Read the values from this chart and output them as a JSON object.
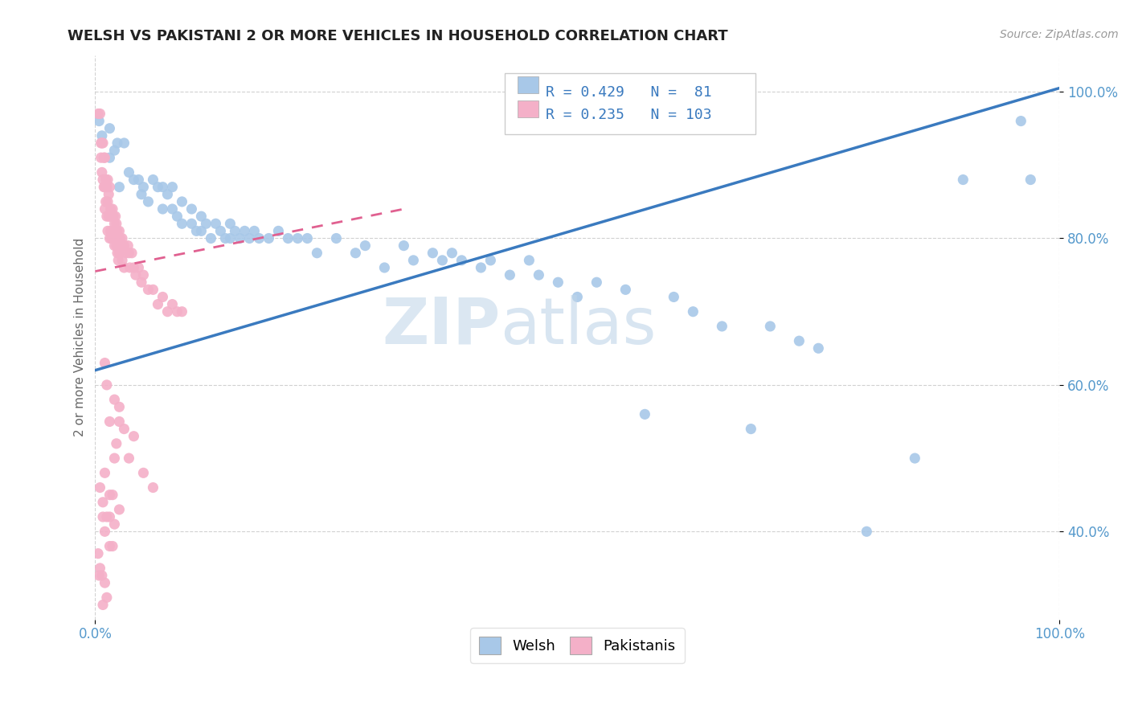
{
  "title": "WELSH VS PAKISTANI 2 OR MORE VEHICLES IN HOUSEHOLD CORRELATION CHART",
  "source": "Source: ZipAtlas.com",
  "ylabel": "2 or more Vehicles in Household",
  "welsh_R": 0.429,
  "welsh_N": 81,
  "pakistani_R": 0.235,
  "pakistani_N": 103,
  "welsh_color": "#a8c8e8",
  "pakistani_color": "#f4b0c8",
  "welsh_line_color": "#3a7abf",
  "pakistani_line_color": "#e06090",
  "welsh_trend_x0": 0.0,
  "welsh_trend_y0": 0.62,
  "welsh_trend_x1": 1.0,
  "welsh_trend_y1": 1.005,
  "pakistani_trend_x0": 0.0,
  "pakistani_trend_y0": 0.755,
  "pakistani_trend_x1": 0.32,
  "pakistani_trend_y1": 0.84,
  "xlim": [
    0.0,
    1.0
  ],
  "ylim": [
    0.28,
    1.05
  ],
  "welsh_dots": [
    [
      0.004,
      0.96
    ],
    [
      0.007,
      0.94
    ],
    [
      0.015,
      0.95
    ],
    [
      0.015,
      0.91
    ],
    [
      0.02,
      0.92
    ],
    [
      0.023,
      0.93
    ],
    [
      0.025,
      0.87
    ],
    [
      0.03,
      0.93
    ],
    [
      0.035,
      0.89
    ],
    [
      0.04,
      0.88
    ],
    [
      0.045,
      0.88
    ],
    [
      0.048,
      0.86
    ],
    [
      0.05,
      0.87
    ],
    [
      0.055,
      0.85
    ],
    [
      0.06,
      0.88
    ],
    [
      0.065,
      0.87
    ],
    [
      0.07,
      0.84
    ],
    [
      0.07,
      0.87
    ],
    [
      0.075,
      0.86
    ],
    [
      0.08,
      0.84
    ],
    [
      0.08,
      0.87
    ],
    [
      0.085,
      0.83
    ],
    [
      0.09,
      0.85
    ],
    [
      0.09,
      0.82
    ],
    [
      0.1,
      0.84
    ],
    [
      0.1,
      0.82
    ],
    [
      0.105,
      0.81
    ],
    [
      0.11,
      0.83
    ],
    [
      0.11,
      0.81
    ],
    [
      0.115,
      0.82
    ],
    [
      0.12,
      0.8
    ],
    [
      0.125,
      0.82
    ],
    [
      0.13,
      0.81
    ],
    [
      0.135,
      0.8
    ],
    [
      0.14,
      0.82
    ],
    [
      0.14,
      0.8
    ],
    [
      0.145,
      0.81
    ],
    [
      0.15,
      0.8
    ],
    [
      0.155,
      0.81
    ],
    [
      0.16,
      0.8
    ],
    [
      0.165,
      0.81
    ],
    [
      0.17,
      0.8
    ],
    [
      0.18,
      0.8
    ],
    [
      0.19,
      0.81
    ],
    [
      0.2,
      0.8
    ],
    [
      0.21,
      0.8
    ],
    [
      0.22,
      0.8
    ],
    [
      0.23,
      0.78
    ],
    [
      0.25,
      0.8
    ],
    [
      0.27,
      0.78
    ],
    [
      0.28,
      0.79
    ],
    [
      0.3,
      0.76
    ],
    [
      0.32,
      0.79
    ],
    [
      0.33,
      0.77
    ],
    [
      0.35,
      0.78
    ],
    [
      0.36,
      0.77
    ],
    [
      0.37,
      0.78
    ],
    [
      0.38,
      0.77
    ],
    [
      0.4,
      0.76
    ],
    [
      0.41,
      0.77
    ],
    [
      0.43,
      0.75
    ],
    [
      0.45,
      0.77
    ],
    [
      0.46,
      0.75
    ],
    [
      0.48,
      0.74
    ],
    [
      0.5,
      0.72
    ],
    [
      0.52,
      0.74
    ],
    [
      0.55,
      0.73
    ],
    [
      0.57,
      0.56
    ],
    [
      0.6,
      0.72
    ],
    [
      0.62,
      0.7
    ],
    [
      0.65,
      0.68
    ],
    [
      0.68,
      0.54
    ],
    [
      0.7,
      0.68
    ],
    [
      0.73,
      0.66
    ],
    [
      0.75,
      0.65
    ],
    [
      0.8,
      0.4
    ],
    [
      0.85,
      0.5
    ],
    [
      0.9,
      0.88
    ],
    [
      0.96,
      0.96
    ],
    [
      0.97,
      0.88
    ]
  ],
  "pakistani_dots": [
    [
      0.003,
      0.97
    ],
    [
      0.005,
      0.97
    ],
    [
      0.006,
      0.93
    ],
    [
      0.006,
      0.91
    ],
    [
      0.007,
      0.93
    ],
    [
      0.007,
      0.89
    ],
    [
      0.008,
      0.93
    ],
    [
      0.008,
      0.88
    ],
    [
      0.009,
      0.91
    ],
    [
      0.009,
      0.87
    ],
    [
      0.01,
      0.91
    ],
    [
      0.01,
      0.87
    ],
    [
      0.01,
      0.84
    ],
    [
      0.011,
      0.88
    ],
    [
      0.011,
      0.85
    ],
    [
      0.012,
      0.87
    ],
    [
      0.012,
      0.83
    ],
    [
      0.013,
      0.88
    ],
    [
      0.013,
      0.85
    ],
    [
      0.013,
      0.81
    ],
    [
      0.014,
      0.86
    ],
    [
      0.014,
      0.83
    ],
    [
      0.015,
      0.87
    ],
    [
      0.015,
      0.83
    ],
    [
      0.015,
      0.8
    ],
    [
      0.016,
      0.84
    ],
    [
      0.016,
      0.81
    ],
    [
      0.017,
      0.83
    ],
    [
      0.017,
      0.8
    ],
    [
      0.018,
      0.84
    ],
    [
      0.018,
      0.81
    ],
    [
      0.019,
      0.83
    ],
    [
      0.019,
      0.8
    ],
    [
      0.02,
      0.82
    ],
    [
      0.02,
      0.79
    ],
    [
      0.021,
      0.83
    ],
    [
      0.021,
      0.8
    ],
    [
      0.022,
      0.82
    ],
    [
      0.022,
      0.79
    ],
    [
      0.023,
      0.81
    ],
    [
      0.023,
      0.78
    ],
    [
      0.024,
      0.8
    ],
    [
      0.024,
      0.77
    ],
    [
      0.025,
      0.81
    ],
    [
      0.025,
      0.78
    ],
    [
      0.026,
      0.8
    ],
    [
      0.027,
      0.79
    ],
    [
      0.028,
      0.8
    ],
    [
      0.028,
      0.77
    ],
    [
      0.03,
      0.79
    ],
    [
      0.03,
      0.76
    ],
    [
      0.032,
      0.78
    ],
    [
      0.034,
      0.79
    ],
    [
      0.035,
      0.78
    ],
    [
      0.036,
      0.76
    ],
    [
      0.038,
      0.78
    ],
    [
      0.04,
      0.76
    ],
    [
      0.042,
      0.75
    ],
    [
      0.045,
      0.76
    ],
    [
      0.048,
      0.74
    ],
    [
      0.05,
      0.75
    ],
    [
      0.055,
      0.73
    ],
    [
      0.06,
      0.73
    ],
    [
      0.065,
      0.71
    ],
    [
      0.07,
      0.72
    ],
    [
      0.075,
      0.7
    ],
    [
      0.08,
      0.71
    ],
    [
      0.085,
      0.7
    ],
    [
      0.09,
      0.7
    ],
    [
      0.01,
      0.63
    ],
    [
      0.012,
      0.6
    ],
    [
      0.015,
      0.55
    ],
    [
      0.02,
      0.58
    ],
    [
      0.022,
      0.52
    ],
    [
      0.025,
      0.57
    ],
    [
      0.03,
      0.54
    ],
    [
      0.035,
      0.5
    ],
    [
      0.04,
      0.53
    ],
    [
      0.05,
      0.48
    ],
    [
      0.06,
      0.46
    ],
    [
      0.008,
      0.44
    ],
    [
      0.01,
      0.4
    ],
    [
      0.012,
      0.42
    ],
    [
      0.015,
      0.38
    ],
    [
      0.018,
      0.45
    ],
    [
      0.02,
      0.41
    ],
    [
      0.025,
      0.43
    ],
    [
      0.005,
      0.35
    ],
    [
      0.007,
      0.34
    ],
    [
      0.008,
      0.3
    ],
    [
      0.01,
      0.33
    ],
    [
      0.012,
      0.31
    ],
    [
      0.003,
      0.37
    ],
    [
      0.004,
      0.34
    ],
    [
      0.015,
      0.42
    ],
    [
      0.018,
      0.38
    ],
    [
      0.005,
      0.46
    ],
    [
      0.008,
      0.42
    ],
    [
      0.01,
      0.48
    ],
    [
      0.015,
      0.45
    ],
    [
      0.02,
      0.5
    ],
    [
      0.025,
      0.55
    ]
  ]
}
